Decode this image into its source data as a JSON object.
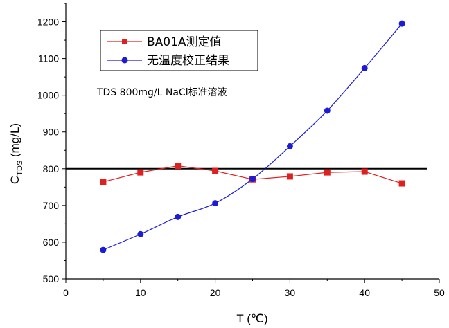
{
  "chart_data": {
    "type": "line",
    "xlabel": "T (℃)",
    "ylabel_main": "C",
    "ylabel_sub": "TDS",
    "ylabel_rest": " (mg/L)",
    "xlim": [
      0,
      50
    ],
    "ylim": [
      500,
      1250
    ],
    "x_ticks": [
      0,
      10,
      20,
      30,
      40,
      50
    ],
    "y_ticks": [
      500,
      600,
      700,
      800,
      900,
      1000,
      1100,
      1200
    ],
    "annotation": "TDS 800mg/L NaCl标准溶液",
    "reference_line": {
      "y": 800,
      "color": "#000000"
    },
    "legend_position": "top-left",
    "series": [
      {
        "name": "BA01A测定值",
        "color": "#e02020",
        "marker": "square",
        "x": [
          5,
          10,
          15,
          20,
          25,
          30,
          35,
          40,
          45
        ],
        "values": [
          764,
          790,
          808,
          794,
          771,
          779,
          790,
          792,
          760
        ]
      },
      {
        "name": "无温度校正结果",
        "color": "#1c1cd6",
        "marker": "circle",
        "x": [
          5,
          10,
          15,
          20,
          25,
          30,
          35,
          40,
          45
        ],
        "values": [
          579,
          622,
          669,
          706,
          772,
          861,
          958,
          1074,
          1195
        ]
      }
    ]
  }
}
